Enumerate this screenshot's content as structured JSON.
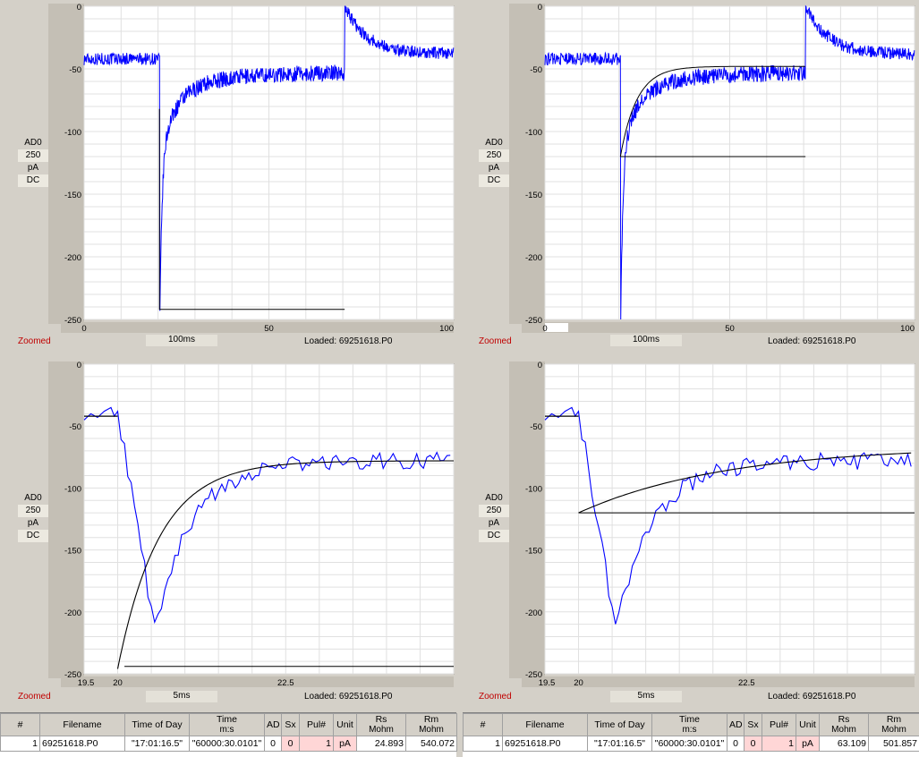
{
  "panels": [
    {
      "id": "top-left",
      "channel": [
        "AD0",
        "250",
        "pA",
        "DC"
      ],
      "zoomed_label": "Zoomed",
      "timebase": "100ms",
      "loaded": "Loaded: 69251618.P0",
      "y_ticks": [
        "0",
        "-50",
        "-100",
        "-150",
        "-200",
        "-250"
      ],
      "x_ticks": [
        "0",
        "50",
        "100"
      ],
      "x_range": [
        0,
        100
      ],
      "y_range": [
        -250,
        0
      ],
      "fit_mode": "full"
    },
    {
      "id": "top-right",
      "channel": [
        "AD0",
        "250",
        "pA",
        "DC"
      ],
      "zoomed_label": "Zoomed",
      "timebase": "100ms",
      "loaded": "Loaded: 69251618.P0",
      "y_ticks": [
        "0",
        "-50",
        "-100",
        "-150",
        "-200",
        "-250"
      ],
      "x_ticks": [
        "0",
        "50",
        "100"
      ],
      "x_range": [
        0,
        100
      ],
      "y_range": [
        -250,
        0
      ],
      "fit_mode": "line"
    },
    {
      "id": "bottom-left",
      "channel": [
        "AD0",
        "250",
        "pA",
        "DC"
      ],
      "zoomed_label": "Zoomed",
      "timebase": "5ms",
      "loaded": "Loaded: 69251618.P0",
      "y_ticks": [
        "0",
        "-50",
        "-100",
        "-150",
        "-200",
        "-250"
      ],
      "x_ticks": [
        "19.5",
        "20",
        "22.5"
      ],
      "x_range": [
        19.5,
        25
      ],
      "y_range": [
        -250,
        0
      ],
      "fit_mode": "zoom-full"
    },
    {
      "id": "bottom-right",
      "channel": [
        "AD0",
        "250",
        "pA",
        "DC"
      ],
      "zoomed_label": "Zoomed",
      "timebase": "5ms",
      "loaded": "Loaded: 69251618.P0",
      "y_ticks": [
        "0",
        "-50",
        "-100",
        "-150",
        "-200",
        "-250"
      ],
      "x_ticks": [
        "19.5",
        "20",
        "22.5"
      ],
      "x_range": [
        19.5,
        25
      ],
      "y_range": [
        -250,
        0
      ],
      "fit_mode": "zoom-line"
    }
  ],
  "tables": [
    {
      "headers": [
        "#",
        "Filename",
        "Time of Day",
        "Time",
        "AD",
        "Sx",
        "Pul#",
        "Unit",
        "Rs",
        "Rm"
      ],
      "subheaders": [
        "",
        "",
        "",
        "m:s",
        "",
        "",
        "",
        "",
        "Mohm",
        "Mohm"
      ],
      "row": [
        "1",
        "69251618.P0",
        "\"17:01:16.5\"",
        "\"60000:30.0101\"",
        "0",
        "0",
        "1",
        "pA",
        "24.893",
        "540.072"
      ]
    },
    {
      "headers": [
        "#",
        "Filename",
        "Time of Day",
        "Time",
        "AD",
        "Sx",
        "Pul#",
        "Unit",
        "Rs",
        "Rm"
      ],
      "subheaders": [
        "",
        "",
        "",
        "m:s",
        "",
        "",
        "",
        "",
        "Mohm",
        "Mohm"
      ],
      "row": [
        "1",
        "69251618.P0",
        "\"17:01:16.5\"",
        "\"60000:30.0101\"",
        "0",
        "0",
        "1",
        "pA",
        "63.109",
        "501.857"
      ]
    }
  ],
  "colors": {
    "trace": "#0000ff",
    "fit": "#000000",
    "grid": "#e0e0e0",
    "frame_dark": "#c4bfb5",
    "zoomed": "#c00000"
  }
}
